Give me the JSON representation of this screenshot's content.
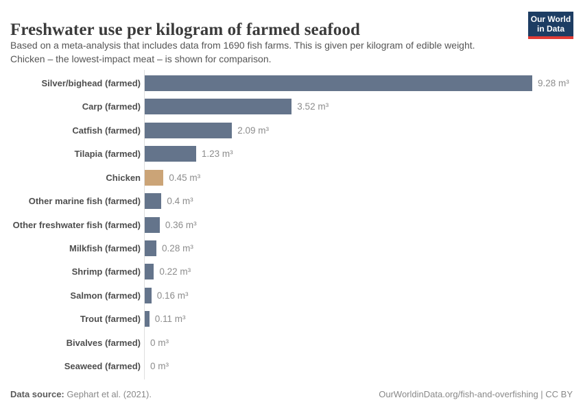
{
  "header": {
    "title": "Freshwater use per kilogram of farmed seafood",
    "subtitle_line1": "Based on a meta-analysis that includes data from 1690 fish farms. This is given per kilogram of edible weight.",
    "subtitle_line2": "Chicken – the lowest-impact meat – is shown for comparison.",
    "logo": {
      "line1": "Our World",
      "line2": "in Data",
      "bg_color": "#1d3d63",
      "accent_color": "#e23b35"
    }
  },
  "chart_data": {
    "type": "bar",
    "orientation": "horizontal",
    "title": "Freshwater use per kilogram of farmed seafood",
    "unit": "m³",
    "xlim": [
      0,
      9.28
    ],
    "grid": false,
    "legend": "none",
    "categories": [
      "Silver/bighead (farmed)",
      "Carp (farmed)",
      "Catfish (farmed)",
      "Tilapia (farmed)",
      "Chicken",
      "Other marine fish (farmed)",
      "Other freshwater fish (farmed)",
      "Milkfish (farmed)",
      "Shrimp (farmed)",
      "Salmon (farmed)",
      "Trout (farmed)",
      "Bivalves (farmed)",
      "Seaweed (farmed)"
    ],
    "values": [
      9.28,
      3.52,
      2.09,
      1.23,
      0.45,
      0.4,
      0.36,
      0.28,
      0.22,
      0.16,
      0.11,
      0,
      0
    ],
    "value_labels": [
      "9.28 m³",
      "3.52 m³",
      "2.09 m³",
      "1.23 m³",
      "0.45 m³",
      "0.4 m³",
      "0.36 m³",
      "0.28 m³",
      "0.22 m³",
      "0.16 m³",
      "0.11 m³",
      "0 m³",
      "0 m³"
    ],
    "bar_color": "#64748b",
    "highlight_index": 4,
    "highlight_color": "#cba477",
    "axis_color": "#dedede"
  },
  "footer": {
    "source_label": "Data source:",
    "source_value": "Gephart et al. (2021).",
    "rights_text": "OurWorldinData.org/fish-and-overfishing | CC BY"
  }
}
